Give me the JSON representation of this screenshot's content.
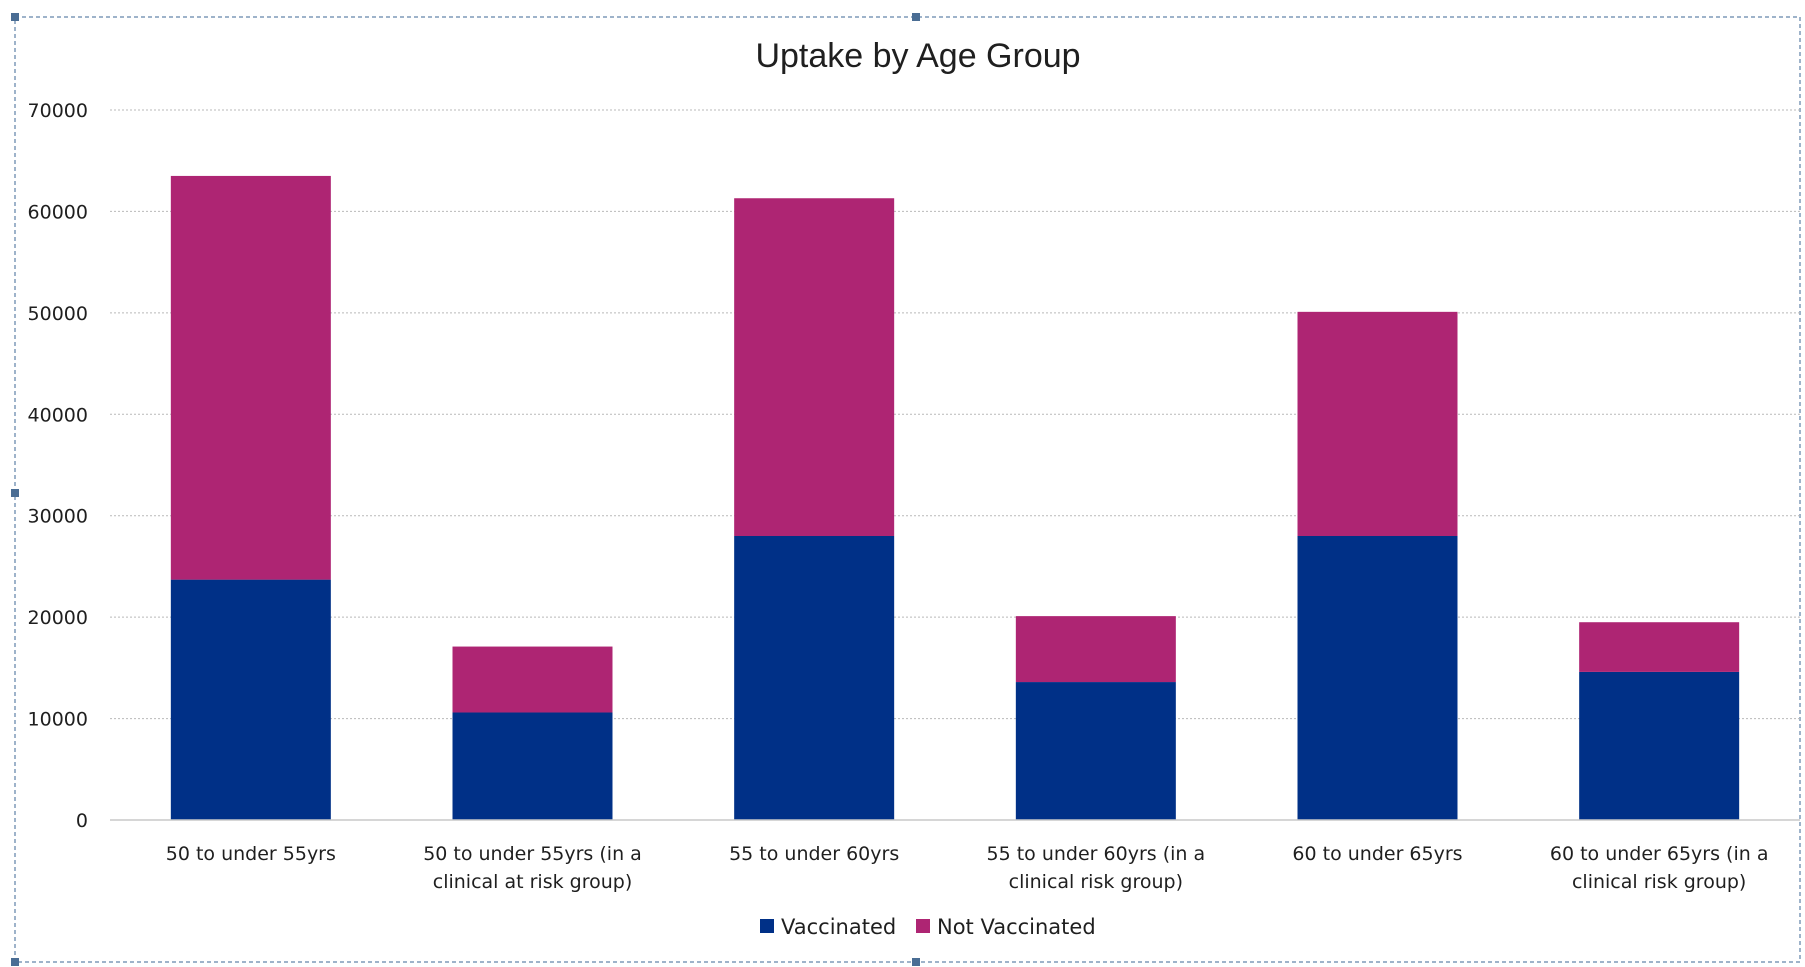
{
  "chart_data": {
    "type": "bar",
    "stacked": true,
    "title": "Uptake by Age Group",
    "xlabel": "",
    "ylabel": "",
    "ylim": [
      0,
      70000
    ],
    "yticks": [
      0,
      10000,
      20000,
      30000,
      40000,
      50000,
      60000,
      70000
    ],
    "grid": true,
    "legend_position": "bottom",
    "categories": [
      [
        "50 to under 55yrs"
      ],
      [
        "50 to under 55yrs (in a",
        "clinical at risk group)"
      ],
      [
        "55 to under 60yrs"
      ],
      [
        "55 to under 60yrs (in a",
        "clinical risk group)"
      ],
      [
        "60 to under 65yrs"
      ],
      [
        "60 to under 65yrs (in a",
        "clinical risk group)"
      ]
    ],
    "series": [
      {
        "name": "Vaccinated",
        "color": "#003087",
        "values": [
          23700,
          10600,
          28000,
          13600,
          28000,
          14600
        ]
      },
      {
        "name": "Not Vaccinated",
        "color": "#AE2573",
        "values": [
          39800,
          6500,
          33300,
          6500,
          22100,
          4900
        ]
      }
    ]
  }
}
